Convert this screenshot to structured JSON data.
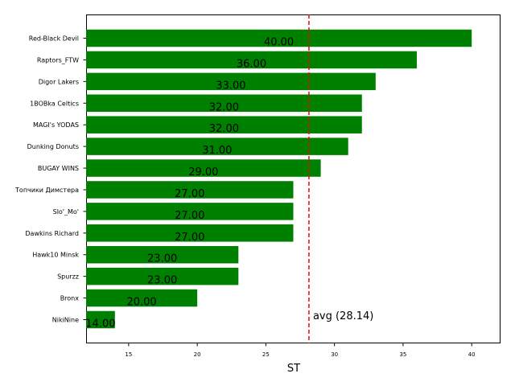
{
  "chart_data": {
    "type": "bar",
    "orientation": "horizontal",
    "categories": [
      "Red-Black Devil",
      "Raptors_FTW",
      "Digor Lakers",
      "1BOBka Celtics",
      "MAGI's YODAS",
      "Dunking Donuts",
      "BUGAY WINS",
      "Топчики Димстера",
      "Slo'_Mo'",
      "Dawkins Richard",
      "Hawk10 Minsk",
      "Spurzz",
      "Bronx",
      "NikiNine"
    ],
    "values": [
      40,
      36,
      33,
      32,
      32,
      31,
      29,
      27,
      27,
      27,
      23,
      23,
      20,
      14
    ],
    "value_labels": [
      "40.00",
      "36.00",
      "33.00",
      "32.00",
      "32.00",
      "31.00",
      "29.00",
      "27.00",
      "27.00",
      "27.00",
      "23.00",
      "23.00",
      "20.00",
      "14.00"
    ],
    "xlabel": "ST",
    "ylabel": "",
    "xlim": [
      11.9,
      42.1
    ],
    "xticks": [
      15,
      20,
      25,
      30,
      35,
      40
    ],
    "xtick_labels": [
      "15",
      "20",
      "25",
      "30",
      "35",
      "40"
    ],
    "bar_color": "#008000",
    "average": {
      "value": 28.14,
      "label": "avg (28.14)",
      "color": "#ff0000",
      "style": "dashed"
    },
    "grid": false,
    "legend": "none"
  }
}
